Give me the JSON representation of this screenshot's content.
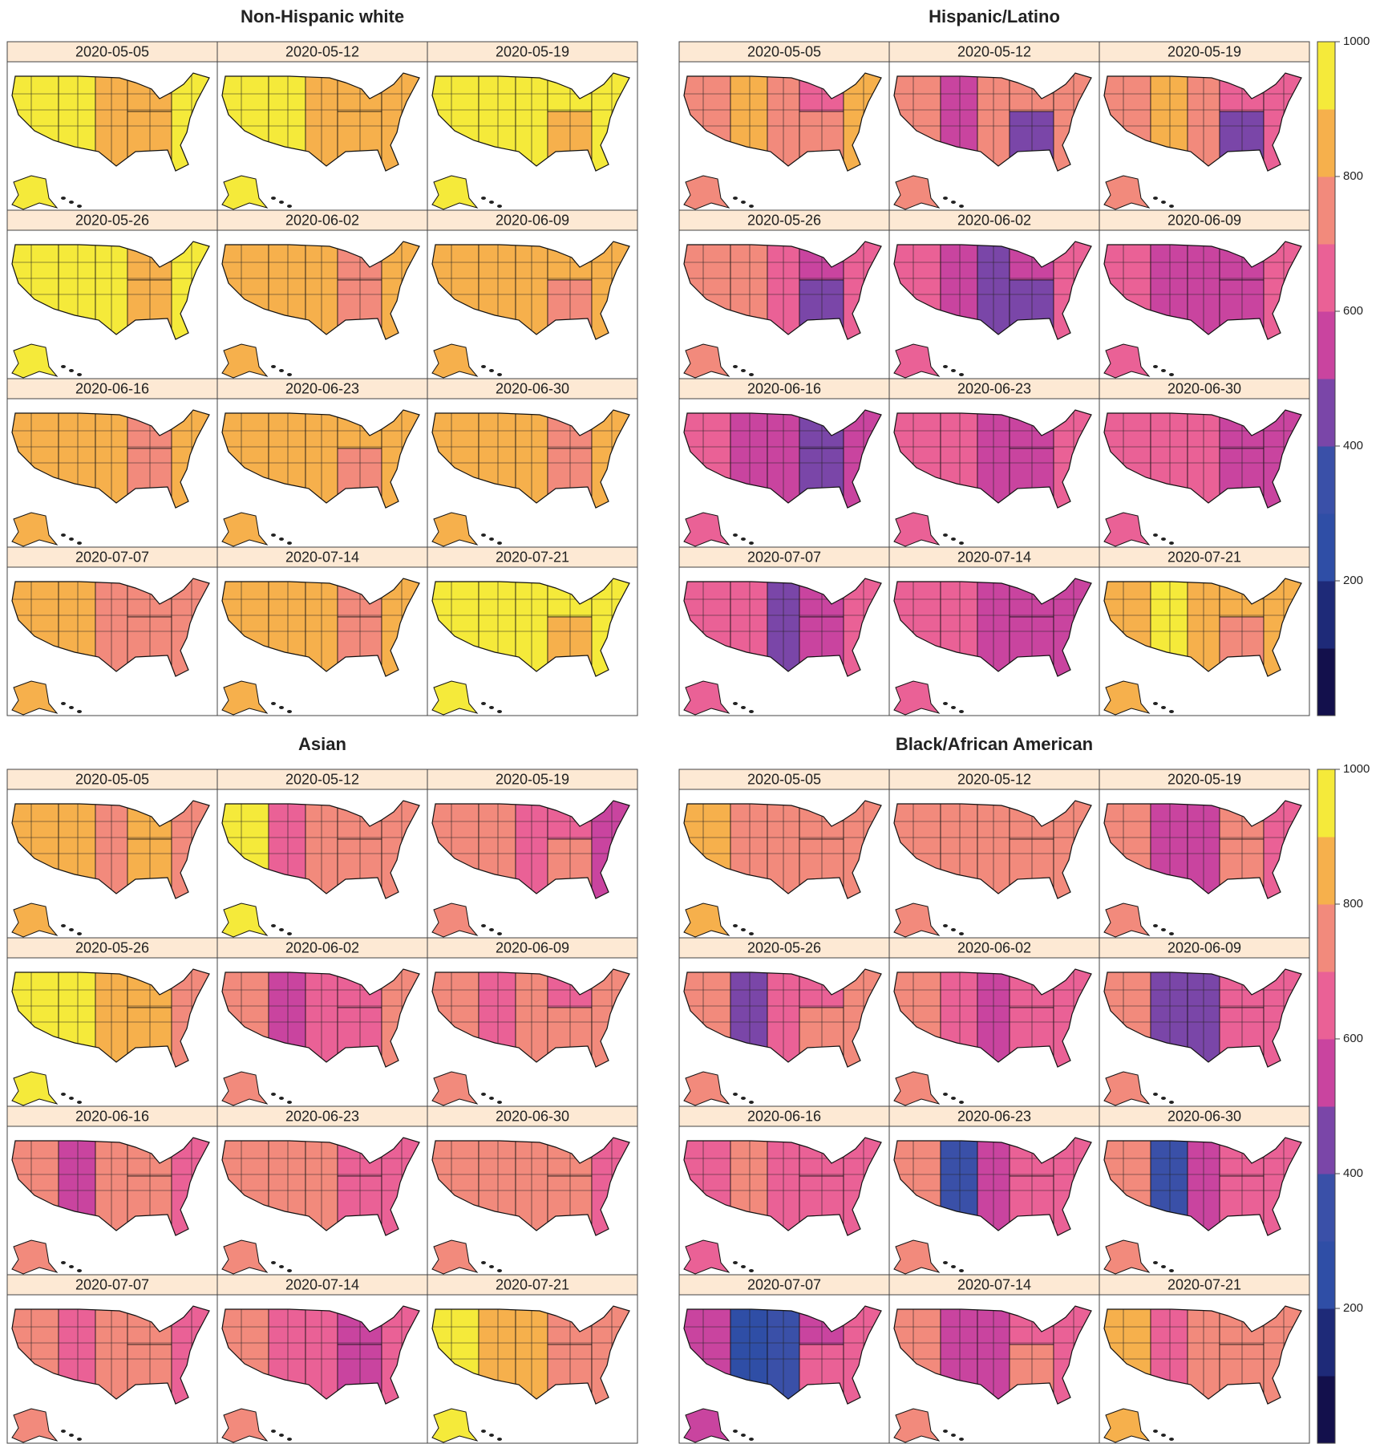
{
  "color_scale": {
    "lim": [
      0,
      1000
    ],
    "ticks": [
      200,
      400,
      600,
      800,
      1000
    ],
    "colors": [
      "#13104c",
      "#1e2a78",
      "#2f4ea6",
      "#3a50a8",
      "#7a46a8",
      "#c9449f",
      "#ea6196",
      "#f28a7c",
      "#f6b04c",
      "#f5ea3a"
    ]
  },
  "chart_data": [
    {
      "type": "choropleth",
      "title": "Non-Hispanic white",
      "colorbar": false,
      "panels": [
        {
          "date": "2020-05-05",
          "values": [
            920,
            900,
            880,
            860,
            820,
            900
          ]
        },
        {
          "date": "2020-05-12",
          "values": [
            910,
            900,
            880,
            860,
            830,
            880
          ]
        },
        {
          "date": "2020-05-19",
          "values": [
            940,
            930,
            920,
            900,
            880,
            910
          ]
        },
        {
          "date": "2020-05-26",
          "values": [
            920,
            910,
            900,
            880,
            850,
            900
          ]
        },
        {
          "date": "2020-06-02",
          "values": [
            820,
            800,
            800,
            790,
            750,
            810
          ]
        },
        {
          "date": "2020-06-09",
          "values": [
            840,
            820,
            810,
            800,
            770,
            820
          ]
        },
        {
          "date": "2020-06-16",
          "values": [
            830,
            820,
            810,
            790,
            740,
            810
          ]
        },
        {
          "date": "2020-06-23",
          "values": [
            830,
            820,
            810,
            800,
            750,
            810
          ]
        },
        {
          "date": "2020-06-30",
          "values": [
            830,
            820,
            800,
            790,
            740,
            800
          ]
        },
        {
          "date": "2020-07-07",
          "values": [
            810,
            800,
            790,
            770,
            720,
            790
          ]
        },
        {
          "date": "2020-07-14",
          "values": [
            820,
            810,
            800,
            780,
            730,
            800
          ]
        },
        {
          "date": "2020-07-21",
          "values": [
            940,
            920,
            910,
            900,
            880,
            910
          ]
        }
      ]
    },
    {
      "type": "choropleth",
      "title": "Hispanic/Latino",
      "colorbar": true,
      "panels": [
        {
          "date": "2020-05-05",
          "values": [
            780,
            880,
            720,
            640,
            720,
            820
          ]
        },
        {
          "date": "2020-05-12",
          "values": [
            720,
            560,
            720,
            760,
            480,
            720
          ]
        },
        {
          "date": "2020-05-19",
          "values": [
            740,
            800,
            720,
            660,
            480,
            660
          ]
        },
        {
          "date": "2020-05-26",
          "values": [
            700,
            720,
            620,
            560,
            440,
            620
          ]
        },
        {
          "date": "2020-06-02",
          "values": [
            640,
            560,
            480,
            560,
            420,
            620
          ]
        },
        {
          "date": "2020-06-09",
          "values": [
            660,
            560,
            540,
            560,
            500,
            620
          ]
        },
        {
          "date": "2020-06-16",
          "values": [
            640,
            580,
            500,
            450,
            440,
            580
          ]
        },
        {
          "date": "2020-06-23",
          "values": [
            660,
            620,
            580,
            580,
            560,
            620
          ]
        },
        {
          "date": "2020-06-30",
          "values": [
            660,
            620,
            600,
            580,
            580,
            560
          ]
        },
        {
          "date": "2020-07-07",
          "values": [
            660,
            620,
            480,
            580,
            500,
            620
          ]
        },
        {
          "date": "2020-07-14",
          "values": [
            660,
            620,
            500,
            580,
            500,
            580
          ]
        },
        {
          "date": "2020-07-21",
          "values": [
            820,
            920,
            820,
            800,
            780,
            840
          ]
        }
      ]
    },
    {
      "type": "choropleth",
      "title": "Asian",
      "colorbar": false,
      "panels": [
        {
          "date": "2020-05-05",
          "values": [
            880,
            820,
            720,
            860,
            800,
            780
          ]
        },
        {
          "date": "2020-05-12",
          "values": [
            920,
            620,
            740,
            720,
            720,
            780
          ]
        },
        {
          "date": "2020-05-19",
          "values": [
            780,
            720,
            620,
            660,
            720,
            560
          ]
        },
        {
          "date": "2020-05-26",
          "values": [
            920,
            900,
            880,
            800,
            820,
            720
          ]
        },
        {
          "date": "2020-06-02",
          "values": [
            760,
            500,
            660,
            640,
            660,
            720
          ]
        },
        {
          "date": "2020-06-09",
          "values": [
            780,
            660,
            740,
            660,
            720,
            720
          ]
        },
        {
          "date": "2020-06-16",
          "values": [
            760,
            560,
            720,
            720,
            700,
            660
          ]
        },
        {
          "date": "2020-06-23",
          "values": [
            760,
            720,
            780,
            620,
            660,
            660
          ]
        },
        {
          "date": "2020-06-30",
          "values": [
            760,
            720,
            780,
            720,
            700,
            620
          ]
        },
        {
          "date": "2020-07-07",
          "values": [
            720,
            660,
            740,
            720,
            700,
            660
          ]
        },
        {
          "date": "2020-07-14",
          "values": [
            740,
            600,
            660,
            540,
            580,
            660
          ]
        },
        {
          "date": "2020-07-21",
          "values": [
            900,
            840,
            820,
            780,
            740,
            780
          ]
        }
      ]
    },
    {
      "type": "choropleth",
      "title": "Black/African American",
      "colorbar": true,
      "panels": [
        {
          "date": "2020-05-05",
          "values": [
            880,
            780,
            720,
            720,
            720,
            720
          ]
        },
        {
          "date": "2020-05-12",
          "values": [
            780,
            760,
            720,
            740,
            740,
            720
          ]
        },
        {
          "date": "2020-05-19",
          "values": [
            780,
            540,
            560,
            720,
            720,
            660
          ]
        },
        {
          "date": "2020-05-26",
          "values": [
            780,
            420,
            620,
            660,
            700,
            720
          ]
        },
        {
          "date": "2020-06-02",
          "values": [
            740,
            660,
            560,
            620,
            640,
            620
          ]
        },
        {
          "date": "2020-06-09",
          "values": [
            740,
            400,
            480,
            640,
            660,
            680
          ]
        },
        {
          "date": "2020-06-16",
          "values": [
            660,
            720,
            640,
            660,
            660,
            660
          ]
        },
        {
          "date": "2020-06-23",
          "values": [
            740,
            360,
            560,
            660,
            680,
            660
          ]
        },
        {
          "date": "2020-06-30",
          "values": [
            780,
            300,
            540,
            640,
            660,
            660
          ]
        },
        {
          "date": "2020-07-07",
          "values": [
            580,
            200,
            300,
            580,
            620,
            640
          ]
        },
        {
          "date": "2020-07-14",
          "values": [
            740,
            500,
            560,
            640,
            700,
            660
          ]
        },
        {
          "date": "2020-07-21",
          "values": [
            840,
            600,
            720,
            740,
            780,
            720
          ]
        }
      ]
    }
  ]
}
